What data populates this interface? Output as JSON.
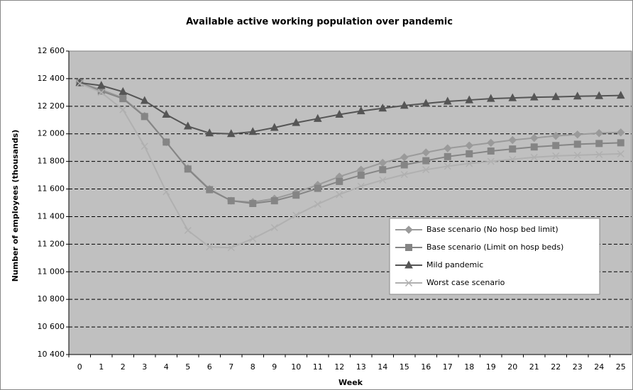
{
  "chart_data": {
    "type": "line",
    "title": "Available active working population over pandemic",
    "x_label": "Week",
    "y_label": "Number of employees (thousands)",
    "categories": [
      "0",
      "1",
      "2",
      "3",
      "4",
      "5",
      "6",
      "7",
      "8",
      "9",
      "10",
      "11",
      "12",
      "13",
      "14",
      "15",
      "16",
      "17",
      "18",
      "19",
      "20",
      "21",
      "22",
      "23",
      "24",
      "25"
    ],
    "ylim": [
      10400,
      12600
    ],
    "yticks": [
      {
        "value": 10400,
        "label": "10 400"
      },
      {
        "value": 10600,
        "label": "10 600"
      },
      {
        "value": 10800,
        "label": "10 800"
      },
      {
        "value": 11000,
        "label": "11 000"
      },
      {
        "value": 11200,
        "label": "11 200"
      },
      {
        "value": 11400,
        "label": "11 400"
      },
      {
        "value": 11600,
        "label": "11 600"
      },
      {
        "value": 11800,
        "label": "11 800"
      },
      {
        "value": 12000,
        "label": "12 000"
      },
      {
        "value": 12200,
        "label": "12 200"
      },
      {
        "value": 12400,
        "label": "12 400"
      },
      {
        "value": 12600,
        "label": "12 600"
      }
    ],
    "grid": true,
    "legend": "lower right",
    "series": [
      {
        "name": "Base scenario (No hosp bed limit)",
        "color": "#9a9a9a",
        "marker": "diamond",
        "values": [
          12370,
          12320,
          12260,
          12130,
          11940,
          11750,
          11600,
          11515,
          11505,
          11530,
          11575,
          11630,
          11690,
          11740,
          11790,
          11830,
          11865,
          11895,
          11915,
          11935,
          11955,
          11970,
          11985,
          11995,
          12005,
          12010
        ]
      },
      {
        "name": "Base scenario (Limit on hosp beds)",
        "color": "#858585",
        "marker": "square",
        "values": [
          12370,
          12310,
          12255,
          12125,
          11940,
          11745,
          11595,
          11515,
          11495,
          11515,
          11555,
          11605,
          11655,
          11700,
          11740,
          11775,
          11805,
          11835,
          11855,
          11875,
          11890,
          11905,
          11915,
          11925,
          11930,
          11935
        ]
      },
      {
        "name": "Mild pandemic",
        "color": "#555555",
        "marker": "triangle",
        "values": [
          12370,
          12350,
          12305,
          12240,
          12140,
          12055,
          12005,
          12000,
          12015,
          12045,
          12080,
          12110,
          12140,
          12165,
          12185,
          12205,
          12220,
          12235,
          12245,
          12255,
          12260,
          12265,
          12268,
          12272,
          12275,
          12278
        ]
      },
      {
        "name": "Worst case scenario",
        "color": "#b0b0b0",
        "marker": "x",
        "values": [
          12365,
          12300,
          12175,
          11910,
          11580,
          11300,
          11180,
          11175,
          11240,
          11320,
          11410,
          11490,
          11560,
          11620,
          11665,
          11705,
          11740,
          11765,
          11785,
          11800,
          11815,
          11830,
          11840,
          11845,
          11850,
          11855
        ]
      }
    ]
  }
}
